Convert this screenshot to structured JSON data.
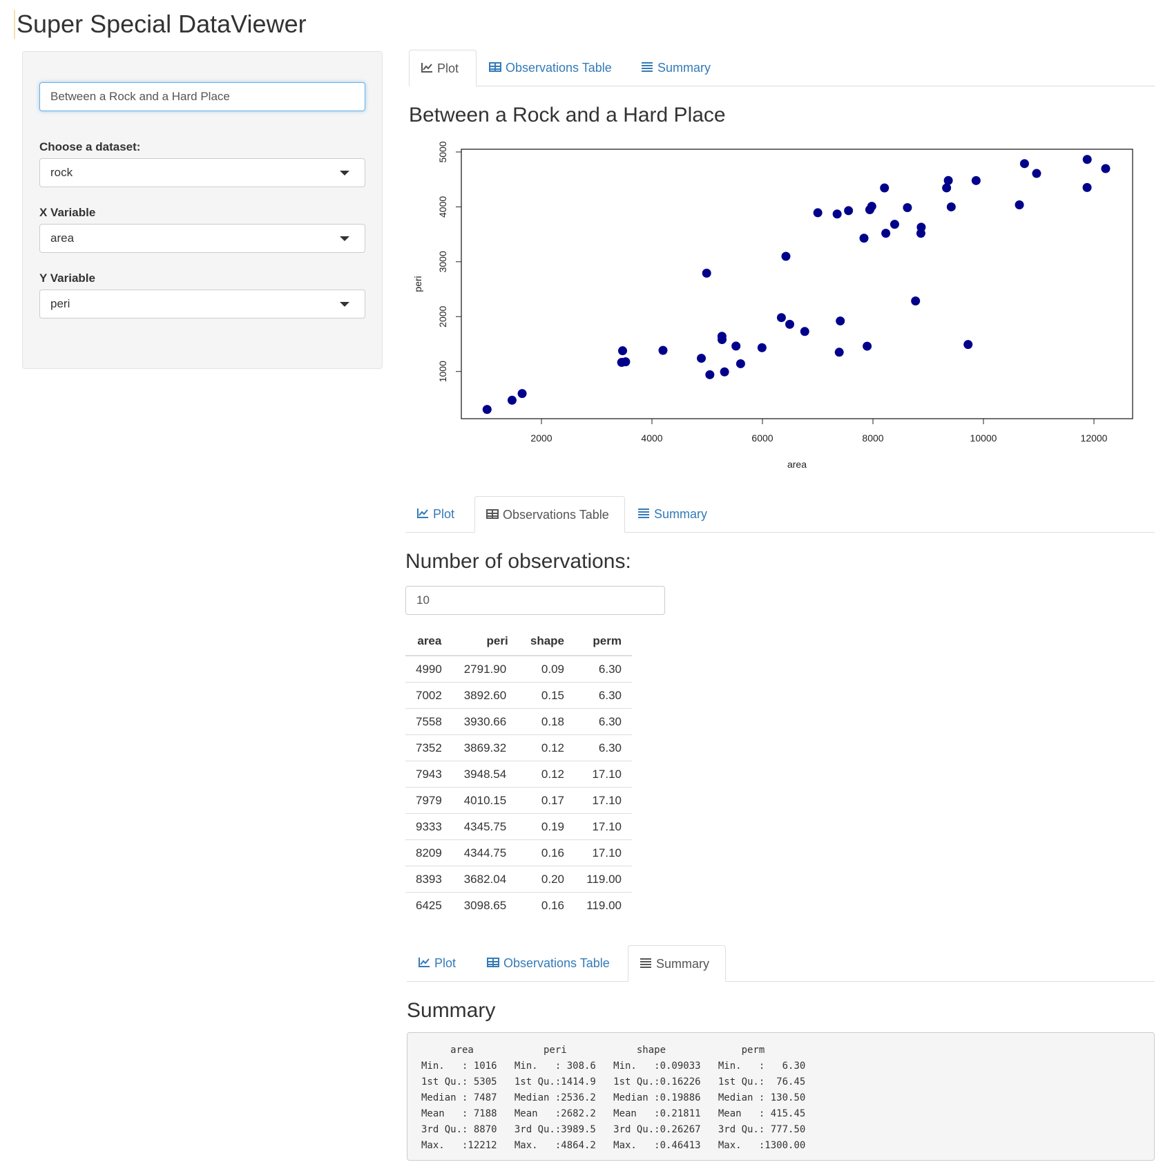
{
  "app": {
    "title": "Super Special DataViewer"
  },
  "sidebar": {
    "title_input": {
      "value": "Between a Rock and a Hard Place"
    },
    "dataset": {
      "label": "Choose a dataset:",
      "value": "rock"
    },
    "x_variable": {
      "label": "X Variable",
      "value": "area"
    },
    "y_variable": {
      "label": "Y Variable",
      "value": "peri"
    }
  },
  "tabs": {
    "plot": "Plot",
    "observations": "Observations Table",
    "summary": "Summary"
  },
  "plot_panel": {
    "heading": "Between a Rock and a Hard Place"
  },
  "chart_data": {
    "type": "scatter",
    "title": "",
    "xlabel": "area",
    "ylabel": "peri",
    "xlim": [
      550,
      12700
    ],
    "ylim": [
      140,
      5050
    ],
    "x_ticks": [
      2000,
      4000,
      6000,
      8000,
      10000,
      12000
    ],
    "y_ticks": [
      1000,
      2000,
      3000,
      4000,
      5000
    ],
    "point_color": "#00008b",
    "points": [
      [
        1016,
        308.6
      ],
      [
        1468,
        476.3
      ],
      [
        1651,
        597.8
      ],
      [
        3469,
        1377.8
      ],
      [
        3524,
        1176.5
      ],
      [
        3452,
        1165.7
      ],
      [
        4200,
        1385.1
      ],
      [
        4894,
        1240.5
      ],
      [
        5048,
        941.5
      ],
      [
        5314,
        992.6
      ],
      [
        5605,
        1141.4
      ],
      [
        5269,
        1581.8
      ],
      [
        5267,
        1641.7
      ],
      [
        5521,
        1463.3
      ],
      [
        5992,
        1433.7
      ],
      [
        6343,
        1981.8
      ],
      [
        6494,
        1860.4
      ],
      [
        6766,
        1728.7
      ],
      [
        7409,
        1920.3
      ],
      [
        7390,
        1351.2
      ],
      [
        7895,
        1461.1
      ],
      [
        8771,
        2284.8
      ],
      [
        9722,
        1492.1
      ],
      [
        4990,
        2791.9
      ],
      [
        7002,
        3892.6
      ],
      [
        7558,
        3930.66
      ],
      [
        7352,
        3869.32
      ],
      [
        7943,
        3948.54
      ],
      [
        7979,
        4010.15
      ],
      [
        9333,
        4345.75
      ],
      [
        8209,
        4344.75
      ],
      [
        8393,
        3682.04
      ],
      [
        6425,
        3098.65
      ],
      [
        9364,
        4480.05
      ],
      [
        8624,
        3986.24
      ],
      [
        10651,
        4036.54
      ],
      [
        8868,
        3518.04
      ],
      [
        9417,
        3999.37
      ],
      [
        8874,
        3629.07
      ],
      [
        10962,
        4608.66
      ],
      [
        10743,
        4787.62
      ],
      [
        11878,
        4864.22
      ],
      [
        9867,
        4479.41
      ],
      [
        7838,
        3428.74
      ],
      [
        11876,
        4353.14
      ],
      [
        12212,
        4697.65
      ],
      [
        8233,
        3518.44
      ]
    ]
  },
  "observations_panel": {
    "heading": "Number of observations:",
    "count": "10",
    "columns": [
      "area",
      "peri",
      "shape",
      "perm"
    ],
    "rows": [
      [
        "4990",
        "2791.90",
        "0.09",
        "6.30"
      ],
      [
        "7002",
        "3892.60",
        "0.15",
        "6.30"
      ],
      [
        "7558",
        "3930.66",
        "0.18",
        "6.30"
      ],
      [
        "7352",
        "3869.32",
        "0.12",
        "6.30"
      ],
      [
        "7943",
        "3948.54",
        "0.12",
        "17.10"
      ],
      [
        "7979",
        "4010.15",
        "0.17",
        "17.10"
      ],
      [
        "9333",
        "4345.75",
        "0.19",
        "17.10"
      ],
      [
        "8209",
        "4344.75",
        "0.16",
        "17.10"
      ],
      [
        "8393",
        "3682.04",
        "0.20",
        "119.00"
      ],
      [
        "6425",
        "3098.65",
        "0.16",
        "119.00"
      ]
    ]
  },
  "summary_panel": {
    "heading": "Summary",
    "lines": [
      "     area            peri            shape             perm        ",
      "Min.   : 1016   Min.   : 308.6   Min.   :0.09033   Min.   :   6.30  ",
      "1st Qu.: 5305   1st Qu.:1414.9   1st Qu.:0.16226   1st Qu.:  76.45  ",
      "Median : 7487   Median :2536.2   Median :0.19886   Median : 130.50  ",
      "Mean   : 7188   Mean   :2682.2   Mean   :0.21811   Mean   : 415.45  ",
      "3rd Qu.: 8870   3rd Qu.:3989.5   3rd Qu.:0.26267   3rd Qu.: 777.50  ",
      "Max.   :12212   Max.   :4864.2   Max.   :0.46413   Max.   :1300.00  "
    ]
  },
  "icons": {
    "plot": "line-chart-icon",
    "observations": "table-icon",
    "summary": "list-icon"
  }
}
